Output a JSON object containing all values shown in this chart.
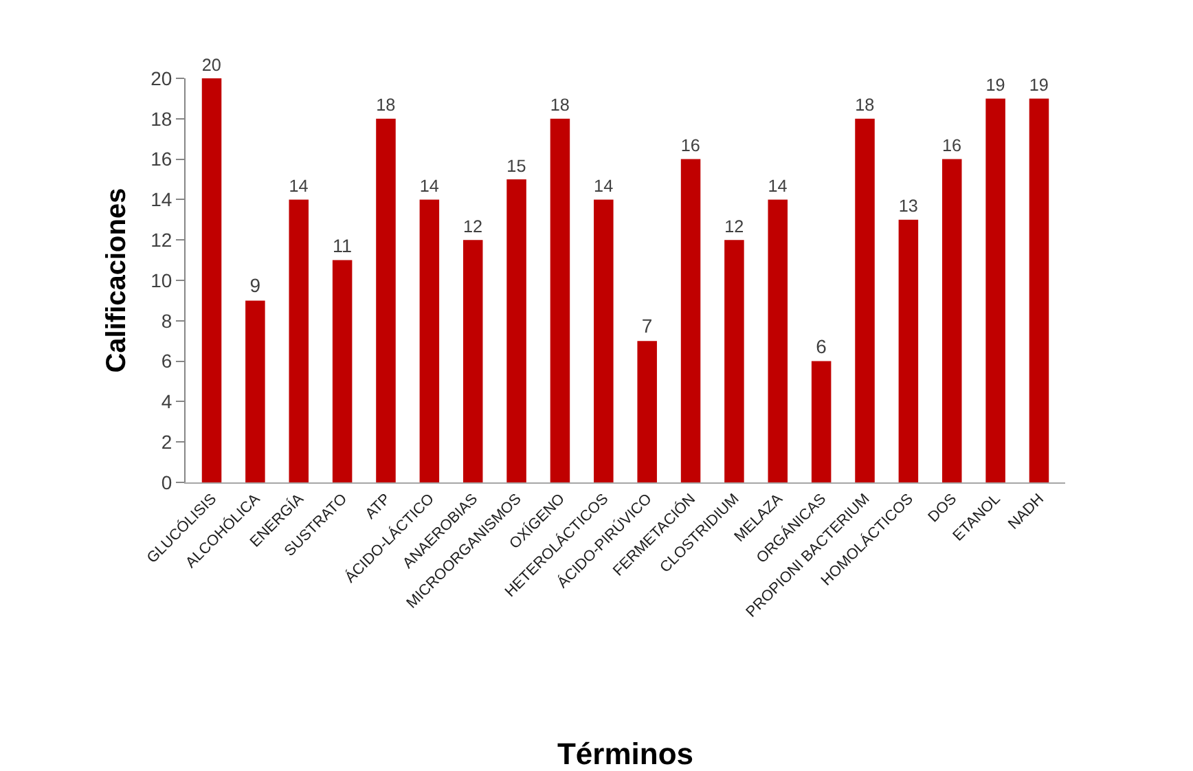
{
  "chart_data": {
    "type": "bar",
    "xlabel": "Términos",
    "ylabel": "Calificaciones",
    "categories": [
      "GLUCÓLISIS",
      "ALCOHÓLICA",
      "ENERGÍA",
      "SUSTRATO",
      "ATP",
      "ÁCIDO-LÁCTICO",
      "ANAEROBIAS",
      "MICROORGANISMOS",
      "OXÍGENO",
      "HETEROLÁCTICOS",
      "ÁCIDO-PIRÚVICO",
      "FERMETACIÓN",
      "CLOSTRIDIUM",
      "MELAZA",
      "ORGÁNICAS",
      "PROPIONI BACTERIUM",
      "HOMOLÁCTICOS",
      "DOS",
      "ETANOL",
      "NADH"
    ],
    "values": [
      20,
      9,
      14,
      11,
      18,
      14,
      12,
      15,
      18,
      14,
      7,
      16,
      12,
      14,
      6,
      18,
      13,
      16,
      19,
      19
    ],
    "color": "#c00000",
    "ylim": [
      0,
      20
    ],
    "yticks": [
      0,
      2,
      4,
      6,
      8,
      10,
      12,
      14,
      16,
      18,
      20
    ],
    "data_labels": true,
    "grid": false,
    "legend": false
  }
}
